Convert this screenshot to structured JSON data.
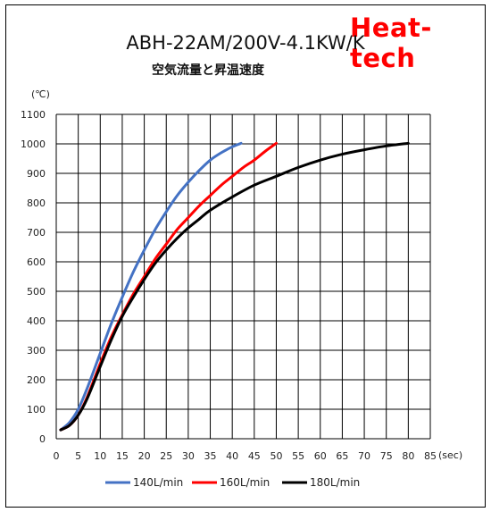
{
  "brand": {
    "text": "Heat-tech",
    "color": "#ff0000"
  },
  "chart_data": {
    "type": "line",
    "title": "ABH-22AM/200V-4.1KW/K",
    "subtitle": "空気流量と昇温速度",
    "xlabel": "(sec)",
    "ylabel": "(℃)",
    "xlim": [
      0,
      85
    ],
    "ylim": [
      0,
      1100
    ],
    "xticks": [
      0,
      5,
      10,
      15,
      20,
      25,
      30,
      35,
      40,
      45,
      50,
      55,
      60,
      65,
      70,
      75,
      80,
      85
    ],
    "yticks": [
      0,
      100,
      200,
      300,
      400,
      500,
      600,
      700,
      800,
      900,
      1000,
      1100
    ],
    "grid": true,
    "legend_position": "bottom",
    "series": [
      {
        "name": "140L/min",
        "color": "#4472c4",
        "x": [
          1,
          3,
          5,
          7,
          10,
          12.5,
          15,
          17.5,
          20,
          22.5,
          25,
          27.5,
          30,
          32.5,
          35,
          37.5,
          40,
          42
        ],
        "y": [
          30,
          55,
          100,
          170,
          290,
          390,
          480,
          565,
          640,
          710,
          770,
          825,
          870,
          910,
          945,
          970,
          990,
          1002
        ]
      },
      {
        "name": "160L/min",
        "color": "#ff0000",
        "x": [
          1,
          3,
          5,
          7,
          10,
          12.5,
          15,
          17.5,
          20,
          22.5,
          25,
          27.5,
          30,
          32.5,
          35,
          37.5,
          40,
          42.5,
          45,
          47.5,
          50
        ],
        "y": [
          30,
          45,
          80,
          140,
          255,
          345,
          420,
          490,
          550,
          610,
          660,
          710,
          750,
          790,
          825,
          860,
          890,
          920,
          945,
          975,
          1002
        ]
      },
      {
        "name": "180L/min",
        "color": "#000000",
        "x": [
          1,
          3,
          5,
          7,
          10,
          12.5,
          15,
          17.5,
          20,
          22.5,
          25,
          27.5,
          30,
          32.5,
          35,
          40,
          45,
          50,
          55,
          60,
          65,
          70,
          75,
          80
        ],
        "y": [
          30,
          45,
          80,
          135,
          245,
          335,
          415,
          480,
          540,
          595,
          640,
          680,
          715,
          745,
          775,
          820,
          860,
          890,
          920,
          945,
          965,
          980,
          993,
          1002
        ]
      }
    ]
  }
}
